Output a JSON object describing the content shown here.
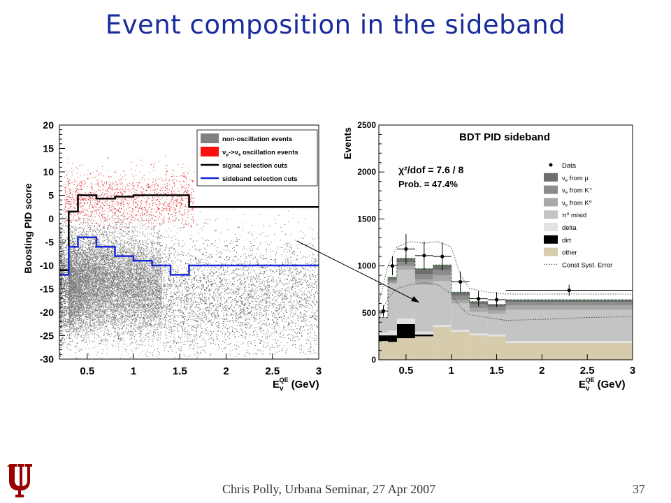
{
  "slide": {
    "title": "Event composition in the sideband",
    "footer": "Chris Polly, Urbana Seminar, 27 Apr 2007",
    "page_number": "37"
  },
  "colors": {
    "title": "#1a2b9c",
    "logo": "#990000",
    "signal_cut": "#000000",
    "sideband_cut": "#1428d8",
    "background_points": "#555555",
    "oscillation_points": "#e02020"
  },
  "chart_data": [
    {
      "type": "scatter",
      "title": "",
      "xlabel_main": "E",
      "xlabel_sub": "ν",
      "xlabel_sup": "QE",
      "xlabel_unit": "(GeV)",
      "ylabel": "Boosting PID score",
      "xlim": [
        0.2,
        3.0
      ],
      "ylim": [
        -30,
        20
      ],
      "x_ticks": [
        "0.5",
        "1",
        "1.5",
        "2",
        "2.5",
        "3"
      ],
      "x_tick_values": [
        0.5,
        1,
        1.5,
        2,
        2.5,
        3
      ],
      "y_ticks": [
        "20",
        "15",
        "10",
        "5",
        "0",
        "-5",
        "-10",
        "-15",
        "-20",
        "-25",
        "-30"
      ],
      "y_tick_values": [
        20,
        15,
        10,
        5,
        0,
        -5,
        -10,
        -15,
        -20,
        -25,
        -30
      ],
      "legend_position": "top-right",
      "legend": [
        {
          "label": "non-oscillation events",
          "color": "#808080",
          "kind": "box"
        },
        {
          "label_pre": "ν",
          "label_pre_sub": "μ",
          "label_mid": "->ν",
          "label_mid_sub": "e",
          "label_post": " oscillation events",
          "color": "#ff1010",
          "kind": "box"
        },
        {
          "label": "signal selection cuts",
          "color": "#000000",
          "kind": "line"
        },
        {
          "label": "sideband selection cuts",
          "color": "#1428d8",
          "kind": "line"
        }
      ],
      "signal_cut_steps": {
        "edges": [
          0.2,
          0.3,
          0.4,
          0.6,
          0.8,
          1.0,
          1.2,
          1.4,
          1.6,
          3.0
        ],
        "values": [
          -11,
          1.5,
          5,
          4.3,
          4.7,
          5,
          5,
          5,
          2.5
        ]
      },
      "sideband_cut_steps": {
        "edges": [
          0.2,
          0.3,
          0.4,
          0.6,
          0.8,
          1.0,
          1.2,
          1.4,
          1.6,
          3.0
        ],
        "values": [
          -12,
          -6,
          -4,
          -6,
          -8,
          -9,
          -10,
          -12,
          -10
        ]
      }
    },
    {
      "type": "stacked-histogram",
      "title": "BDT PID sideband",
      "xlabel_main": "E",
      "xlabel_sub": "ν",
      "xlabel_sup": "QE",
      "xlabel_unit": "(GeV)",
      "ylabel": "Events",
      "xlim": [
        0.2,
        3.0
      ],
      "ylim": [
        0,
        2500
      ],
      "x_ticks": [
        "0.5",
        "1",
        "1.5",
        "2",
        "2.5",
        "3"
      ],
      "x_tick_values": [
        0.5,
        1,
        1.5,
        2,
        2.5,
        3
      ],
      "y_ticks": [
        "2500",
        "2000",
        "1500",
        "1000",
        "500",
        "0"
      ],
      "y_tick_values": [
        2500,
        2000,
        1500,
        1000,
        500,
        0
      ],
      "annotation_chi2": "χ²/dof = 7.6 / 8",
      "annotation_prob": "Prob. = 47.4%",
      "legend_position": "top-right",
      "legend": [
        {
          "label": "Data",
          "kind": "marker",
          "color": "#000000"
        },
        {
          "label_pre": "ν",
          "label_pre_sub": "e",
          "label_post": " from μ",
          "kind": "box",
          "color": "#6e6e6e"
        },
        {
          "label_pre": "ν",
          "label_pre_sub": "e",
          "label_post": " from K⁺",
          "kind": "box",
          "color": "#8c8c8c"
        },
        {
          "label_pre": "ν",
          "label_pre_sub": "e",
          "label_post": " from K⁰",
          "kind": "box",
          "color": "#a8a8a8"
        },
        {
          "label": "π⁰ misid",
          "kind": "box",
          "color": "#c4c4c4"
        },
        {
          "label": "delta",
          "kind": "box",
          "color": "#e2e2e2"
        },
        {
          "label": "dirt",
          "kind": "box",
          "color": "#000000"
        },
        {
          "label": "other",
          "kind": "box",
          "color": "#d6cbad"
        },
        {
          "label": "Const Syst. Error",
          "kind": "dotted",
          "color": "#444444"
        }
      ],
      "bin_edges": [
        0.2,
        0.3,
        0.4,
        0.6,
        0.8,
        1.0,
        1.2,
        1.4,
        1.6,
        3.0
      ],
      "stack": [
        {
          "name": "other",
          "color": "#d6cbad",
          "values": [
            200,
            190,
            230,
            250,
            350,
            300,
            260,
            250,
            180
          ]
        },
        {
          "name": "dirt",
          "color": "#000000",
          "values": [
            60,
            70,
            150,
            20,
            0,
            0,
            0,
            0,
            0
          ]
        },
        {
          "name": "delta",
          "color": "#e2e2e2",
          "values": [
            30,
            50,
            60,
            30,
            20,
            20,
            20,
            20,
            20
          ]
        },
        {
          "name": "π⁰ misid",
          "color": "#c4c4c4",
          "values": [
            150,
            500,
            520,
            500,
            470,
            280,
            230,
            220,
            330
          ]
        },
        {
          "name": "νe from K⁰",
          "color": "#a8a8a8",
          "values": [
            5,
            20,
            40,
            55,
            60,
            40,
            40,
            35,
            50
          ]
        },
        {
          "name": "νe from K⁺",
          "color": "#8c8c8c",
          "values": [
            3,
            20,
            40,
            60,
            60,
            45,
            40,
            38,
            35
          ]
        },
        {
          "name": "νe from μ",
          "color": "#6e6e6e",
          "values": [
            2,
            30,
            40,
            55,
            50,
            35,
            30,
            27,
            25
          ]
        }
      ],
      "data_points": {
        "x": [
          0.25,
          0.35,
          0.5,
          0.7,
          0.9,
          1.1,
          1.3,
          1.5,
          2.3
        ],
        "x_err": [
          0.05,
          0.05,
          0.1,
          0.1,
          0.1,
          0.1,
          0.1,
          0.1,
          0.7
        ],
        "y": [
          520,
          1000,
          1180,
          1110,
          1100,
          830,
          650,
          640,
          740
        ],
        "y_err": [
          60,
          100,
          160,
          150,
          150,
          110,
          80,
          80,
          60
        ]
      },
      "syst_error_upper": {
        "x": [
          0.2,
          0.3,
          0.4,
          0.55,
          0.7,
          0.85,
          1.0,
          1.1,
          1.2,
          1.4,
          1.6,
          2.0,
          2.5,
          3.0
        ],
        "y": [
          600,
          1000,
          1200,
          1260,
          1240,
          1260,
          1200,
          900,
          760,
          720,
          700,
          700,
          700,
          700
        ]
      },
      "syst_error_lower": {
        "x": [
          0.2,
          0.3,
          0.4,
          0.55,
          0.7,
          0.85,
          1.0,
          1.1,
          1.2,
          1.4,
          1.6,
          2.0,
          2.5,
          3.0
        ],
        "y": [
          430,
          660,
          760,
          800,
          820,
          800,
          700,
          560,
          480,
          450,
          420,
          430,
          450,
          460
        ]
      }
    }
  ]
}
